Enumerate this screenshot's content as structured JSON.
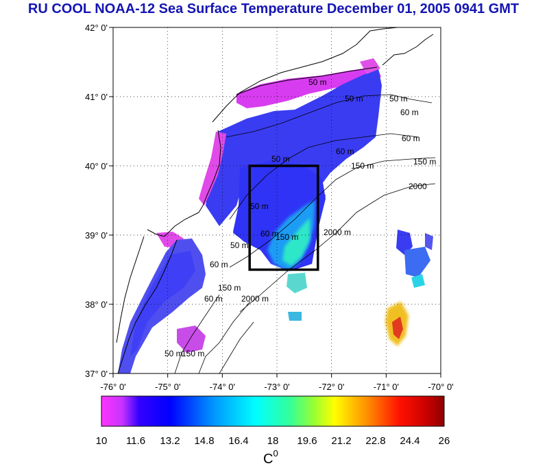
{
  "title": "RU COOL  NOAA-12 Sea Surface Temperature December 01, 2005 0941 GMT",
  "map": {
    "lat_labels": [
      "42° 0'",
      "41° 0'",
      "40° 0'",
      "39° 0'",
      "38° 0'",
      "37° 0'"
    ],
    "lon_labels": [
      "-76° 0'",
      "-75° 0'",
      "-74° 0'",
      "-73° 0'",
      "-72° 0'",
      "-71° 0'",
      "-70° 0'"
    ],
    "lat_range": [
      37,
      42
    ],
    "lon_range": [
      -76,
      -70
    ],
    "grid": "dotted",
    "box": {
      "lon": [
        -73.5,
        -72.25
      ],
      "lat": [
        38.5,
        40.0
      ]
    },
    "contour_labels": [
      "50 m",
      "50 m",
      "50 m",
      "60 m",
      "60 m",
      "60 m",
      "150 m",
      "150 m",
      "2000",
      "50 m",
      "150 m",
      "60 m",
      "2000 m",
      "50 m",
      "150 m",
      "60 m",
      "60 m",
      "2000 m",
      "50 m",
      "150 m",
      "50 m"
    ]
  },
  "colorbar": {
    "min": 10,
    "max": 26,
    "tick_labels": [
      "10",
      "11.6",
      "13.2",
      "14.8",
      "16.4",
      "18",
      "19.6",
      "21.2",
      "22.8",
      "24.4",
      "26"
    ],
    "unit": "C",
    "unit_sup": "0",
    "colors": [
      "#ff33ff",
      "#9933ff",
      "#0000ff",
      "#0080ff",
      "#00ffff",
      "#00ff80",
      "#80ff00",
      "#ffff00",
      "#ff8000",
      "#ff0000",
      "#b00000",
      "#800000"
    ]
  }
}
